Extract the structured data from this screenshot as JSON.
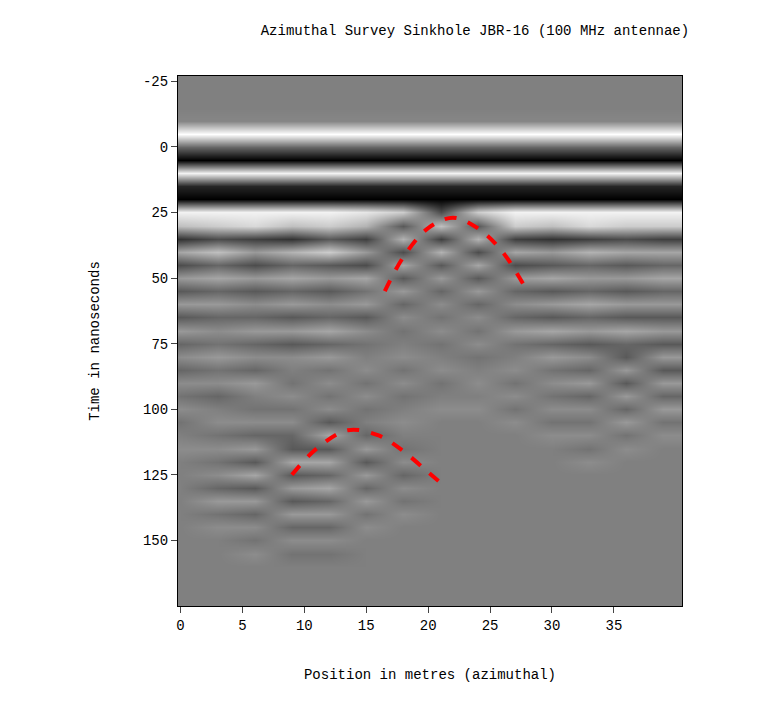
{
  "chart_data": {
    "type": "heatmap",
    "title": "Azimuthal Survey Sinkhole JBR-16 (100 MHz antennae)",
    "x_label": "Position in metres (azimuthal)",
    "y_label": "Time in nanoseconds",
    "xlim": [
      -0.2,
      40.5
    ],
    "ylim": [
      175,
      -27
    ],
    "xticks": [
      0,
      5,
      10,
      15,
      20,
      25,
      30,
      35
    ],
    "yticks": [
      -25,
      0,
      25,
      50,
      75,
      100,
      125,
      150
    ],
    "grid": false,
    "colors": [
      "#000000",
      "#ffffff"
    ],
    "zlim": [
      -1,
      1
    ],
    "x": [
      0,
      3,
      6,
      9,
      12,
      15,
      18,
      21,
      24,
      27,
      30,
      33,
      36,
      39
    ],
    "y": [
      -25,
      -20,
      -15,
      -10,
      -5,
      0,
      5,
      10,
      15,
      20,
      25,
      30,
      35,
      40,
      45,
      50,
      55,
      60,
      65,
      70,
      75,
      80,
      85,
      90,
      95,
      100,
      105,
      110,
      115,
      120,
      125,
      130,
      135,
      140,
      145,
      150,
      155,
      160,
      165,
      170,
      175
    ],
    "cells": [
      [
        0,
        0,
        0,
        0,
        0,
        0,
        0,
        0,
        0,
        0,
        0,
        0,
        0,
        0
      ],
      [
        0,
        0,
        0,
        0,
        0,
        0,
        0,
        0,
        0,
        0,
        0,
        0,
        0,
        0
      ],
      [
        0,
        0,
        0,
        0,
        0,
        0,
        0,
        0,
        0,
        0,
        0,
        0,
        0,
        0
      ],
      [
        0.05,
        0.05,
        0.05,
        0.05,
        0.05,
        0.05,
        0.05,
        0.05,
        0.05,
        0.05,
        0.05,
        0.05,
        0.05,
        0.05
      ],
      [
        1,
        1,
        1,
        1,
        1,
        1,
        1,
        1,
        1,
        1,
        1,
        1,
        1,
        1
      ],
      [
        -0.2,
        -0.2,
        -0.2,
        -0.2,
        -0.2,
        -0.2,
        -0.2,
        -0.2,
        -0.2,
        -0.2,
        -0.2,
        -0.2,
        -0.2,
        -0.2
      ],
      [
        -1,
        -1,
        -1,
        -1,
        -1,
        -1,
        -1,
        -1,
        -1,
        -1,
        -1,
        -1,
        -1,
        -1
      ],
      [
        0.9,
        0.9,
        0.9,
        0.9,
        0.9,
        0.9,
        0.9,
        0.9,
        0.9,
        0.9,
        0.9,
        0.9,
        0.9,
        0.9
      ],
      [
        -0.7,
        -0.7,
        -0.7,
        -0.7,
        -0.7,
        -0.7,
        -0.7,
        -0.7,
        -0.7,
        -0.7,
        -0.7,
        -0.7,
        -0.7,
        -0.7
      ],
      [
        -1,
        -1,
        -1,
        -1,
        -1,
        -1,
        -1,
        -1,
        -1,
        -1,
        -1,
        -1,
        -1,
        -1
      ],
      [
        0.9,
        0.9,
        0.9,
        0.9,
        0.9,
        0.8,
        0.6,
        -0.4,
        0.6,
        0.9,
        0.9,
        0.9,
        0.9,
        0.9
      ],
      [
        0.5,
        0.6,
        0.7,
        0.5,
        0.6,
        0.4,
        -0.3,
        0.5,
        -0.3,
        0.6,
        0.5,
        0.7,
        0.6,
        0.6
      ],
      [
        -0.6,
        -0.4,
        -0.5,
        -0.6,
        -0.3,
        -0.5,
        0.4,
        -0.5,
        0.4,
        -0.5,
        -0.6,
        -0.5,
        -0.4,
        -0.5
      ],
      [
        0.3,
        0.5,
        0.2,
        0.4,
        0.6,
        0.2,
        -0.4,
        0.4,
        -0.4,
        0.3,
        0.2,
        0.4,
        0.3,
        0.3
      ],
      [
        -0.4,
        -0.2,
        -0.4,
        -0.2,
        -0.3,
        -0.4,
        0.3,
        -0.3,
        0.3,
        -0.4,
        -0.3,
        -0.2,
        -0.3,
        -0.2
      ],
      [
        0.2,
        0.3,
        0.2,
        0.3,
        0.2,
        0.3,
        -0.3,
        0.2,
        -0.3,
        0.2,
        0.3,
        0.2,
        0.2,
        0.3
      ],
      [
        -0.3,
        -0.2,
        -0.3,
        -0.2,
        -0.3,
        -0.1,
        0.2,
        -0.2,
        0.2,
        -0.2,
        -0.3,
        -0.2,
        -0.3,
        -0.2
      ],
      [
        0.2,
        0.2,
        0.1,
        0.2,
        0.1,
        0.2,
        -0.2,
        0.1,
        -0.2,
        0.1,
        0.2,
        0.3,
        0.2,
        0.2
      ],
      [
        -0.3,
        -0.2,
        -0.2,
        -0.3,
        -0.2,
        -0.3,
        0.1,
        -0.1,
        0.1,
        -0.2,
        -0.3,
        -0.2,
        -0.3,
        -0.3
      ],
      [
        0.2,
        0.1,
        0.2,
        0.2,
        0.3,
        0.1,
        -0.1,
        0.1,
        -0.1,
        0.2,
        0.3,
        0.2,
        0.3,
        0.2
      ],
      [
        -0.2,
        -0.1,
        -0.2,
        -0.3,
        -0.2,
        -0.1,
        0,
        -0.1,
        0.1,
        -0.1,
        -0.2,
        -0.3,
        -0.2,
        -0.3
      ],
      [
        0.1,
        0.2,
        0.1,
        0.1,
        0.2,
        0,
        0.1,
        0,
        -0.1,
        0,
        0.2,
        0.1,
        -0.3,
        0.2
      ],
      [
        -0.2,
        -0.1,
        -0.2,
        0,
        -0.1,
        0.1,
        -0.1,
        0.1,
        0,
        0.1,
        -0.1,
        -0.2,
        0.2,
        -0.3
      ],
      [
        0.1,
        0.1,
        0.2,
        -0.1,
        0.1,
        -0.1,
        0.1,
        -0.1,
        0.1,
        -0.1,
        0.1,
        0.2,
        -0.3,
        0.2
      ],
      [
        -0.1,
        -0.2,
        0,
        0.1,
        -0.1,
        0.1,
        -0.1,
        0,
        0,
        0.1,
        -0.1,
        -0.2,
        0.2,
        -0.2
      ],
      [
        0.1,
        0,
        -0.1,
        -0.1,
        0.1,
        -0.1,
        0,
        0.1,
        0.1,
        -0.1,
        0.1,
        0.1,
        -0.2,
        0.2
      ],
      [
        -0.1,
        0.1,
        0.1,
        0.1,
        -0.3,
        0,
        0.1,
        0,
        0,
        0.1,
        -0.1,
        -0.1,
        0.2,
        -0.1
      ],
      [
        0,
        -0.1,
        -0.2,
        -0.2,
        0.3,
        -0.2,
        0,
        0,
        0,
        0,
        0.1,
        0.1,
        -0.1,
        0.1
      ],
      [
        0.1,
        0.1,
        0.2,
        -0.3,
        -0.3,
        0.2,
        -0.1,
        0,
        0,
        0,
        0,
        -0.1,
        0.1,
        0
      ],
      [
        0,
        -0.1,
        -0.3,
        0.3,
        0.3,
        -0.3,
        0.1,
        0,
        0,
        0,
        0,
        0.1,
        0,
        0
      ],
      [
        0,
        0.1,
        0.3,
        -0.3,
        -0.2,
        0.2,
        -0.2,
        0,
        0,
        0,
        0,
        0,
        0,
        0
      ],
      [
        0,
        -0.2,
        -0.3,
        0.2,
        0.3,
        -0.2,
        0.1,
        0,
        0,
        0,
        0,
        0,
        0,
        0
      ],
      [
        0,
        0.2,
        0.2,
        -0.3,
        -0.2,
        0.2,
        -0.1,
        0,
        0,
        0,
        0,
        0,
        0,
        0
      ],
      [
        0,
        -0.1,
        -0.2,
        0.2,
        0.2,
        -0.1,
        0.1,
        0,
        0,
        0,
        0,
        0,
        0,
        0
      ],
      [
        0,
        0.1,
        0.1,
        -0.2,
        -0.2,
        0.1,
        0,
        0,
        0,
        0,
        0,
        0,
        0,
        0
      ],
      [
        0,
        0,
        -0.1,
        0.1,
        0.1,
        0,
        0,
        0,
        0,
        0,
        0,
        0,
        0,
        0
      ],
      [
        0,
        0,
        0.1,
        -0.1,
        -0.1,
        0,
        0,
        0,
        0,
        0,
        0,
        0,
        0,
        0
      ],
      [
        0,
        0,
        0,
        0,
        0,
        0,
        0,
        0,
        0,
        0,
        0,
        0,
        0,
        0
      ],
      [
        0,
        0,
        0,
        0,
        0,
        0,
        0,
        0,
        0,
        0,
        0,
        0,
        0,
        0
      ],
      [
        0,
        0,
        0,
        0,
        0,
        0,
        0,
        0,
        0,
        0,
        0,
        0,
        0,
        0
      ],
      [
        0,
        0,
        0,
        0,
        0,
        0,
        0,
        0,
        0,
        0,
        0,
        0,
        0,
        0
      ]
    ],
    "series": [
      {
        "type": "line",
        "color": "#ff0000",
        "line_style": "dash",
        "x": [
          16.5,
          18,
          20,
          22,
          24,
          26,
          28
        ],
        "values": [
          55,
          42,
          31,
          27,
          31,
          40,
          55
        ]
      },
      {
        "type": "line",
        "color": "#ff0000",
        "line_style": "dash",
        "x": [
          9,
          11,
          13.5,
          16,
          18,
          20,
          21.5
        ],
        "values": [
          125,
          115,
          108,
          110,
          116,
          124,
          130
        ]
      }
    ]
  }
}
